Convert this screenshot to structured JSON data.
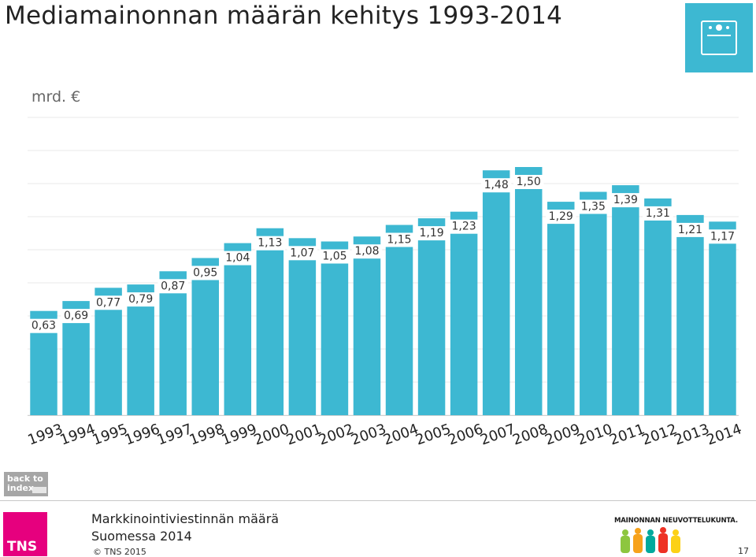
{
  "title": "Mediamainonnan määrän kehitys 1993-2014",
  "unit_label": "mrd. €",
  "header_icon": "media-screen-icon",
  "chart_data": {
    "type": "bar",
    "categories": [
      "1993",
      "1994",
      "1995",
      "1996",
      "1997",
      "1998",
      "1999",
      "2000",
      "2001",
      "2002",
      "2003",
      "2004",
      "2005",
      "2006",
      "2007",
      "2008",
      "2009",
      "2010",
      "2011",
      "2012",
      "2013",
      "2014"
    ],
    "values": [
      0.63,
      0.69,
      0.77,
      0.79,
      0.87,
      0.95,
      1.04,
      1.13,
      1.07,
      1.05,
      1.08,
      1.15,
      1.19,
      1.23,
      1.48,
      1.5,
      1.29,
      1.35,
      1.39,
      1.31,
      1.21,
      1.17
    ],
    "labels": [
      "0,63",
      "0,69",
      "0,77",
      "0,79",
      "0,87",
      "0,95",
      "1,04",
      "1,13",
      "1,07",
      "1,05",
      "1,08",
      "1,15",
      "1,19",
      "1,23",
      "1,48",
      "1,50",
      "1,29",
      "1,35",
      "1,39",
      "1,31",
      "1,21",
      "1,17"
    ],
    "ylim": [
      0,
      1.8
    ],
    "grid": true,
    "bar_color": "#3db8d2",
    "title": "",
    "xlabel": "",
    "ylabel": ""
  },
  "nav": {
    "back_label_1": "back to",
    "back_label_2": "index"
  },
  "footer": {
    "title_line1": "Markkinointiviestinnän määrä",
    "title_line2": "Suomessa 2014",
    "copyright": "©  TNS 2015",
    "logo_text": "TNS",
    "partner_text": "MAINONNAN NEUVOTTELUKUNTA.",
    "page_number": "17"
  },
  "colors": {
    "accent": "#3db8d2",
    "tns": "#e6007e",
    "back_button": "#a6a6a6"
  }
}
